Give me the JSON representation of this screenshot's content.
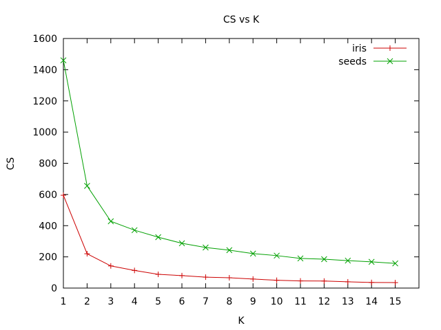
{
  "chart_data": {
    "type": "line",
    "title": "CS vs K",
    "xlabel": "K",
    "ylabel": "CS",
    "xlim": [
      1,
      16
    ],
    "ylim": [
      0,
      1600
    ],
    "xticks": [
      1,
      2,
      3,
      4,
      5,
      6,
      7,
      8,
      9,
      10,
      11,
      12,
      13,
      14,
      15
    ],
    "yticks": [
      0,
      200,
      400,
      600,
      800,
      1000,
      1200,
      1400,
      1600
    ],
    "legend_position": "top-right",
    "grid": false,
    "x": [
      1,
      2,
      3,
      4,
      5,
      6,
      7,
      8,
      9,
      10,
      11,
      12,
      13,
      14,
      15
    ],
    "series": [
      {
        "name": "iris",
        "color": "#cc0000",
        "marker": "plus",
        "values": [
          595,
          220,
          142,
          113,
          88,
          80,
          70,
          66,
          58,
          50,
          46,
          45,
          40,
          36,
          35
        ]
      },
      {
        "name": "seeds",
        "color": "#00a000",
        "marker": "cross",
        "values": [
          1460,
          655,
          428,
          371,
          326,
          287,
          260,
          243,
          221,
          208,
          190,
          185,
          176,
          168,
          158
        ]
      }
    ]
  }
}
